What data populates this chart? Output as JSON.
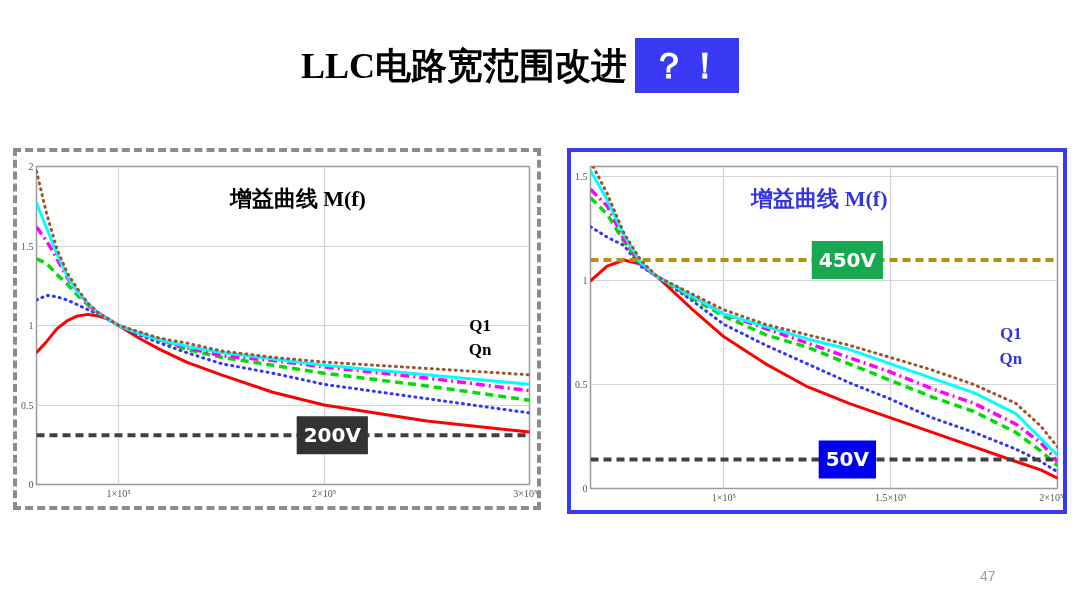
{
  "chart_data": [
    {
      "type": "other",
      "title": "LLC电路宽范围改进",
      "subtitle": "？！",
      "annotations": [
        "47"
      ]
    },
    {
      "type": "line",
      "title": "增益曲线 M(f)",
      "grid": true,
      "x": [
        60000,
        65000,
        70000,
        75000,
        80000,
        85000,
        90000,
        95000,
        100000,
        110000,
        120000,
        133000,
        150000,
        175000,
        200000,
        250000,
        300000
      ],
      "xlim": [
        60000,
        300000
      ],
      "xticks": [
        {
          "value": 100000,
          "label": "1×10⁵"
        },
        {
          "value": 200000,
          "label": "2×10⁵"
        },
        {
          "value": 300000,
          "label": "3×10⁵"
        }
      ],
      "ylim": [
        0,
        2
      ],
      "yticks": [
        0,
        0.5,
        1,
        1.5,
        2
      ],
      "series": [
        {
          "color": "#ff0000",
          "line_style": "solid",
          "values": [
            0.83,
            0.9,
            0.98,
            1.03,
            1.06,
            1.07,
            1.06,
            1.04,
            1.0,
            0.92,
            0.85,
            0.77,
            0.69,
            0.58,
            0.5,
            0.4,
            0.33
          ]
        },
        {
          "color": "#3333ff",
          "line_style": "dotted",
          "values": [
            1.16,
            1.19,
            1.18,
            1.16,
            1.13,
            1.1,
            1.07,
            1.04,
            1.0,
            0.94,
            0.89,
            0.83,
            0.76,
            0.7,
            0.63,
            0.54,
            0.45
          ]
        },
        {
          "color": "#00dd00",
          "line_style": "dashed",
          "values": [
            1.42,
            1.39,
            1.32,
            1.26,
            1.19,
            1.13,
            1.08,
            1.04,
            1.0,
            0.95,
            0.91,
            0.85,
            0.8,
            0.75,
            0.7,
            0.62,
            0.53
          ]
        },
        {
          "color": "#ff00ff",
          "line_style": "dashdot",
          "values": [
            1.62,
            1.53,
            1.42,
            1.3,
            1.21,
            1.13,
            1.08,
            1.04,
            1.0,
            0.95,
            0.91,
            0.86,
            0.81,
            0.78,
            0.74,
            0.67,
            0.59
          ]
        },
        {
          "color": "#00ffff",
          "line_style": "solid",
          "values": [
            1.77,
            1.61,
            1.45,
            1.31,
            1.21,
            1.14,
            1.08,
            1.04,
            1.0,
            0.95,
            0.91,
            0.87,
            0.83,
            0.79,
            0.75,
            0.69,
            0.63
          ]
        },
        {
          "color": "#a0522d",
          "line_style": "dotted",
          "values": [
            1.97,
            1.7,
            1.48,
            1.33,
            1.23,
            1.14,
            1.08,
            1.04,
            1.0,
            0.96,
            0.92,
            0.89,
            0.84,
            0.8,
            0.77,
            0.73,
            0.69
          ]
        }
      ],
      "ref_lines": [
        {
          "axis": "y",
          "value": 0.31,
          "label": "200V",
          "color": "#404040",
          "line_style": "dashed"
        }
      ],
      "annotations": [
        "Q1",
        "Qn"
      ]
    },
    {
      "type": "line",
      "title": "增益曲线 M(f)",
      "grid": true,
      "x": [
        60000,
        65000,
        70000,
        75000,
        80000,
        90000,
        100000,
        112500,
        125000,
        137500,
        150000,
        162500,
        175000,
        187500,
        195000,
        200000
      ],
      "xlim": [
        60000,
        200000
      ],
      "xticks": [
        {
          "value": 100000,
          "label": "1×10⁵"
        },
        {
          "value": 150000,
          "label": "1.5×10⁵"
        },
        {
          "value": 200000,
          "label": "2×10⁵"
        }
      ],
      "ylim": [
        0,
        1.55
      ],
      "yticks": [
        0,
        0.5,
        1,
        1.5
      ],
      "series": [
        {
          "color": "#ff0000",
          "line_style": "solid",
          "values": [
            1.0,
            1.07,
            1.1,
            1.08,
            1.02,
            0.87,
            0.73,
            0.6,
            0.49,
            0.41,
            0.34,
            0.27,
            0.2,
            0.13,
            0.09,
            0.05
          ]
        },
        {
          "color": "#3333ff",
          "line_style": "dotted",
          "values": [
            1.26,
            1.21,
            1.17,
            1.07,
            1.02,
            0.91,
            0.79,
            0.69,
            0.6,
            0.51,
            0.43,
            0.34,
            0.27,
            0.19,
            0.13,
            0.08
          ]
        },
        {
          "color": "#00dd00",
          "line_style": "dashed",
          "values": [
            1.4,
            1.32,
            1.19,
            1.08,
            1.02,
            0.92,
            0.83,
            0.74,
            0.68,
            0.6,
            0.52,
            0.44,
            0.37,
            0.27,
            0.18,
            0.11
          ]
        },
        {
          "color": "#ff00ff",
          "line_style": "dashdot",
          "values": [
            1.44,
            1.36,
            1.2,
            1.08,
            1.02,
            0.93,
            0.84,
            0.77,
            0.7,
            0.63,
            0.56,
            0.48,
            0.41,
            0.31,
            0.22,
            0.13
          ]
        },
        {
          "color": "#00ffff",
          "line_style": "solid",
          "values": [
            1.53,
            1.39,
            1.22,
            1.09,
            1.02,
            0.93,
            0.84,
            0.78,
            0.72,
            0.67,
            0.6,
            0.53,
            0.46,
            0.36,
            0.24,
            0.16
          ]
        },
        {
          "color": "#a0522d",
          "line_style": "dotted",
          "x": [
            60800,
            65000,
            70000,
            75000,
            80000,
            90000,
            100000,
            112500,
            125000,
            137500,
            150000,
            162500,
            175000,
            187500,
            195000,
            200000
          ],
          "values": [
            1.55,
            1.42,
            1.23,
            1.1,
            1.02,
            0.94,
            0.86,
            0.79,
            0.74,
            0.69,
            0.63,
            0.57,
            0.5,
            0.41,
            0.3,
            0.2
          ]
        }
      ],
      "ref_lines": [
        {
          "axis": "y",
          "value": 1.1,
          "label": "450V",
          "color": "#b8900f",
          "line_style": "dashed"
        },
        {
          "axis": "y",
          "value": 0.14,
          "label": "50V",
          "color": "#404040",
          "line_style": "dashed"
        }
      ],
      "annotations": [
        "Q1",
        "Qn"
      ]
    }
  ]
}
